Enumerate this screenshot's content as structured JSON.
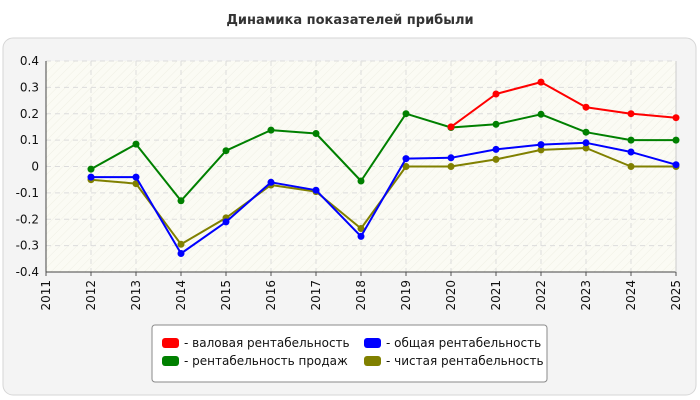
{
  "chart_data": {
    "type": "line",
    "title": "Динамика показателей прибыли",
    "x": [
      "2011",
      "2012",
      "2013",
      "2014",
      "2015",
      "2016",
      "2017",
      "2018",
      "2019",
      "2020",
      "2021",
      "2022",
      "2023",
      "2024",
      "2025"
    ],
    "ylim": [
      -0.4,
      0.4
    ],
    "yticks": [
      -0.4,
      -0.3,
      -0.2,
      -0.1,
      0,
      0.1,
      0.2,
      0.3,
      0.4
    ],
    "ytick_labels": [
      "-0.4",
      "-0.3",
      "-0.2",
      "-0.1",
      "0",
      "0.1",
      "0.2",
      "0.3",
      "0.4"
    ],
    "grid": true,
    "legend_position": "bottom-center",
    "series": [
      {
        "name": "- валовая рентабельность",
        "color": "#ff0000",
        "values": [
          null,
          null,
          null,
          null,
          null,
          null,
          null,
          null,
          null,
          0.15,
          0.275,
          0.32,
          0.225,
          0.2,
          0.185
        ]
      },
      {
        "name": "- общая рентабельность",
        "color": "#0000ff",
        "values": [
          null,
          -0.04,
          -0.04,
          -0.33,
          -0.21,
          -0.06,
          -0.09,
          -0.265,
          0.03,
          0.033,
          0.065,
          0.083,
          0.09,
          0.055,
          0.007
        ]
      },
      {
        "name": "- рентабельность продаж",
        "color": "#008000",
        "values": [
          null,
          -0.01,
          0.085,
          -0.13,
          0.06,
          0.138,
          0.125,
          -0.055,
          0.2,
          0.148,
          0.16,
          0.198,
          0.13,
          0.1,
          0.1
        ]
      },
      {
        "name": "- чистая рентабельность",
        "color": "#808000",
        "values": [
          null,
          -0.05,
          -0.065,
          -0.295,
          -0.195,
          -0.07,
          -0.095,
          -0.235,
          0.0,
          0.0,
          0.027,
          0.063,
          0.07,
          0.0,
          0.0
        ]
      }
    ],
    "legend_order": [
      0,
      1,
      2,
      3
    ]
  }
}
